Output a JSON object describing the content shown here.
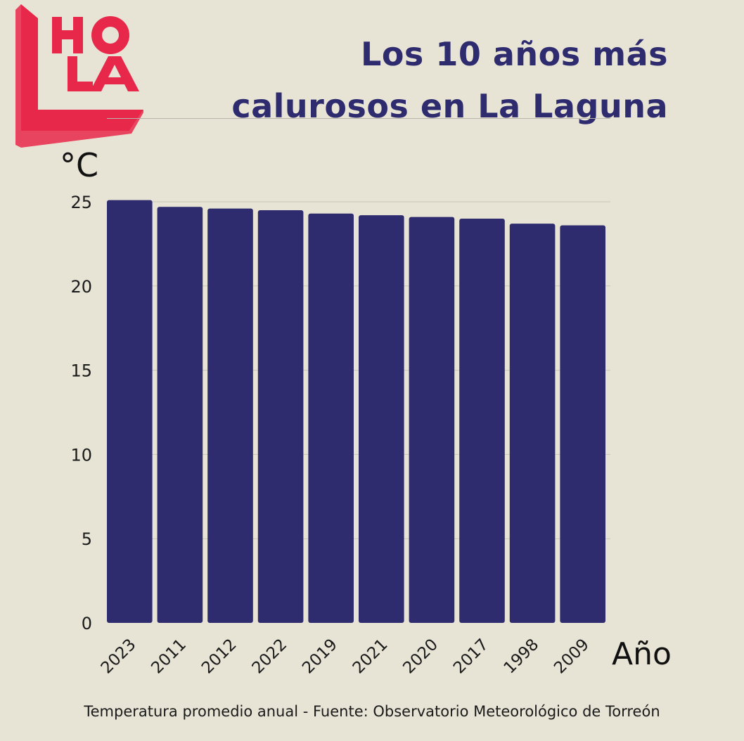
{
  "logo": {
    "text": "HOLA",
    "color": "#e8284a"
  },
  "colors": {
    "background": "#e7e4d5",
    "bar": "#2e2b6f",
    "title": "#2e2b6f",
    "grid": "#c9c6b8"
  },
  "chart_data": {
    "type": "bar",
    "title_line1": "Los 10 años más",
    "title_line2": "calurosos en  La Laguna",
    "ylabel": "°C",
    "xlabel": "Año",
    "categories": [
      "2023",
      "2011",
      "2012",
      "2022",
      "2019",
      "2021",
      "2020",
      "2017",
      "1998",
      "2009"
    ],
    "values": [
      25.1,
      24.7,
      24.6,
      24.5,
      24.3,
      24.2,
      24.1,
      24.0,
      23.7,
      23.6
    ],
    "yticks": [
      0,
      5,
      10,
      15,
      20,
      25
    ],
    "ylim": [
      0,
      25
    ],
    "grid": true,
    "caption": "Temperatura promedio anual - Fuente: Observatorio Meteorológico de Torreón"
  }
}
